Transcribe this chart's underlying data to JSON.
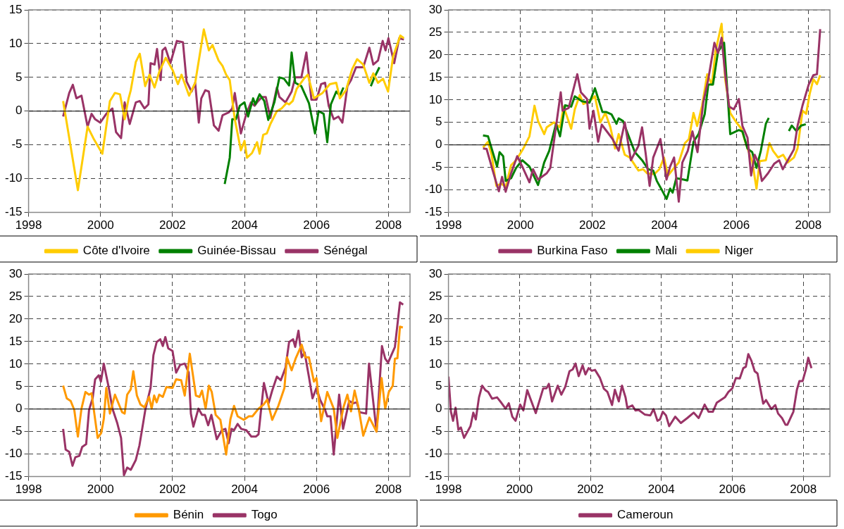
{
  "chart_data": [
    {
      "type": "line",
      "xlim": [
        1998,
        2008.6
      ],
      "xticks": [
        1998,
        2000,
        2002,
        2004,
        2006,
        2008
      ],
      "ylim": [
        -15,
        15
      ],
      "yticks": [
        -15,
        -10,
        -5,
        0,
        5,
        10,
        15
      ],
      "grid": true,
      "legend": "bottom",
      "series": [
        {
          "name": "Côte d'Ivoire",
          "color": "#ffcc00",
          "x": [
            1998.96,
            1999.37,
            1999.64,
            1999.8,
            2000.05,
            2000.26,
            2000.4,
            2000.54,
            2000.67,
            2000.78,
            2000.84,
            2000.98,
            2001.09,
            2001.24,
            2001.36,
            2001.5,
            2001.63,
            2001.81,
            2002.01,
            2002.15,
            2002.25,
            2002.46,
            2002.63,
            2002.77,
            2002.87,
            2003.01,
            2003.11,
            2003.28,
            2003.39,
            2003.49,
            2003.59,
            2003.73,
            2003.9,
            2004.0,
            2004.07,
            2004.21,
            2004.35,
            2004.42,
            2004.52,
            2004.62,
            2004.72,
            2004.9,
            2005.03,
            2005.17,
            2005.24,
            2005.34,
            2005.45,
            2005.65,
            2005.76,
            2005.93,
            2006.17,
            2006.37,
            2006.55,
            2006.65,
            2006.82,
            2006.99,
            2007.13,
            2007.3,
            2007.47,
            2007.58,
            2007.71,
            2007.85,
            2007.99,
            2008.13,
            2008.33,
            2008.43
          ],
          "values": [
            1.5,
            -11.7,
            -2.3,
            -4,
            -6.3,
            1.5,
            2.7,
            2.5,
            -1.2,
            1.9,
            3.1,
            7.3,
            8.5,
            3.7,
            5.4,
            3.5,
            5.8,
            7.9,
            6,
            4,
            5.4,
            2.3,
            4.2,
            8.8,
            12.1,
            9,
            9.8,
            7.5,
            6.7,
            5.4,
            4.6,
            -1.2,
            -5.8,
            -4.4,
            -6.9,
            -6.2,
            -4.6,
            -6.3,
            -3.5,
            -3.3,
            -1.9,
            0,
            0.4,
            1.2,
            1,
            1.5,
            3.3,
            4.8,
            5.4,
            1.9,
            2.7,
            4,
            4.2,
            1.9,
            3.1,
            6.2,
            7.7,
            6.9,
            4.2,
            5.6,
            4.2,
            4.8,
            2.9,
            8.1,
            11.2,
            10.8
          ]
        },
        {
          "name": "Guinée-Bissau",
          "color": "#008000",
          "x": [
            2003.45,
            2003.59,
            2003.66,
            2003.76,
            2003.87,
            2004.0,
            2004.1,
            2004.24,
            2004.3,
            2004.42,
            2004.55,
            2004.66,
            2004.83,
            2004.97,
            2005.1,
            2005.24,
            2005.31,
            2005.41,
            2005.58,
            2005.79,
            2005.96,
            2006.06,
            2006.2,
            2006.3,
            2006.4,
            2006.55,
            2006.65,
            2006.75,
            2007.1,
            2007.51,
            2007.61,
            2007.75
          ],
          "values": [
            -10.8,
            -6.9,
            -1.2,
            -1.2,
            0.8,
            1.3,
            -0.8,
            1.9,
            1,
            2.5,
            1.5,
            -1.3,
            1.3,
            5,
            4.8,
            3.8,
            8.7,
            4.2,
            3.7,
            1.2,
            -3.3,
            0,
            -0.4,
            -4.6,
            1,
            2.9,
            2.3,
            3.5,
            null,
            3.7,
            5,
            6.5
          ]
        },
        {
          "name": "Sénégal",
          "color": "#993366",
          "x": [
            1998.96,
            1999.13,
            1999.23,
            1999.33,
            1999.47,
            1999.64,
            1999.75,
            1999.85,
            1999.99,
            2000.16,
            2000.33,
            2000.43,
            2000.57,
            2000.67,
            2000.81,
            2000.98,
            2001.09,
            2001.22,
            2001.33,
            2001.39,
            2001.5,
            2001.57,
            2001.67,
            2001.72,
            2001.8,
            2001.94,
            2002.12,
            2002.29,
            2002.39,
            2002.53,
            2002.63,
            2002.73,
            2002.8,
            2002.91,
            2003.01,
            2003.15,
            2003.28,
            2003.39,
            2003.56,
            2003.66,
            2003.73,
            2003.9,
            2004.04,
            2004.18,
            2004.28,
            2004.38,
            2004.49,
            2004.59,
            2004.72,
            2004.9,
            2004.97,
            2005.14,
            2005.31,
            2005.41,
            2005.58,
            2005.72,
            2005.86,
            2006.0,
            2006.13,
            2006.24,
            2006.34,
            2006.48,
            2006.61,
            2006.72,
            2006.86,
            2006.96,
            2007.1,
            2007.3,
            2007.47,
            2007.58,
            2007.71,
            2007.84,
            2007.92,
            2008.0,
            2008.16,
            2008.3,
            2008.43
          ],
          "values": [
            -0.8,
            2.7,
            3.9,
            1.9,
            2.3,
            -2.3,
            -0.4,
            -1.2,
            -1.7,
            -0.4,
            0.4,
            -3.1,
            -4,
            1.3,
            -1.9,
            1.3,
            1.5,
            0.4,
            1,
            7.1,
            6.9,
            9.2,
            4.6,
            9,
            9.4,
            7.1,
            10.4,
            10.2,
            4.4,
            2.9,
            4.2,
            -1.7,
            1.9,
            3.1,
            2.9,
            -2.1,
            -2.9,
            -0.6,
            -0.2,
            0.4,
            2.7,
            -3.3,
            -0.6,
            1.3,
            0.8,
            1.5,
            2.1,
            2.1,
            -1,
            3.5,
            2.1,
            1.3,
            2.9,
            5,
            5,
            8.7,
            1.7,
            1.7,
            4,
            4.2,
            0.8,
            -1.2,
            -0.8,
            -1.7,
            3.7,
            4.6,
            6.5,
            6.5,
            9.4,
            6.9,
            7.5,
            10.4,
            9,
            10.8,
            7.1,
            10.8,
            10.6
          ]
        }
      ]
    },
    {
      "type": "line",
      "xlim": [
        1998,
        2008.6
      ],
      "xticks": [
        1998,
        2000,
        2002,
        2004,
        2006,
        2008
      ],
      "ylim": [
        -15,
        30
      ],
      "yticks": [
        -15,
        -10,
        -5,
        0,
        5,
        10,
        15,
        20,
        25,
        30
      ],
      "grid": true,
      "legend": "bottom",
      "series": [
        {
          "name": "Burkina Faso",
          "color": "#993366",
          "x": [
            1998.96,
            1999.06,
            1999.23,
            1999.4,
            1999.49,
            1999.59,
            1999.74,
            1999.91,
            2000.05,
            2000.25,
            2000.35,
            2000.49,
            2000.73,
            2000.83,
            2000.97,
            2001.12,
            2001.17,
            2001.34,
            2001.58,
            2001.68,
            2001.85,
            2001.92,
            2002.03,
            2002.16,
            2002.26,
            2002.43,
            2002.56,
            2002.73,
            2002.9,
            2003.07,
            2003.28,
            2003.38,
            2003.48,
            2003.59,
            2003.69,
            2003.89,
            2004.06,
            2004.16,
            2004.27,
            2004.4,
            2004.5,
            2004.65,
            2004.78,
            2004.92,
            2005.08,
            2005.22,
            2005.39,
            2005.49,
            2005.59,
            2005.69,
            2005.8,
            2005.93,
            2006.07,
            2006.17,
            2006.31,
            2006.41,
            2006.51,
            2006.61,
            2006.71,
            2006.88,
            2007.05,
            2007.19,
            2007.29,
            2007.43,
            2007.6,
            2007.7,
            2007.84,
            2008.01,
            2008.14,
            2008.24,
            2008.33
          ],
          "values": [
            -0.8,
            -0.9,
            -5.7,
            -10.3,
            -7.1,
            -10.4,
            -6.3,
            -2.5,
            -4.8,
            -8.3,
            -5.4,
            -7.7,
            -6.3,
            -5.1,
            3,
            11.7,
            7.6,
            8.2,
            15.7,
            11.7,
            10.2,
            3.6,
            7.6,
            0.7,
            4.5,
            2.7,
            1.3,
            -1.3,
            5,
            -3.4,
            -0.2,
            3.9,
            -1.9,
            -9.1,
            -2.8,
            1.3,
            -7.7,
            -4.8,
            -2.8,
            -12.6,
            -3.9,
            -1.3,
            3,
            -1.6,
            9.4,
            14.6,
            22.7,
            20.4,
            23.8,
            15.7,
            8.5,
            7.9,
            10.2,
            4.2,
            1.6,
            -6.8,
            -2.2,
            -3.9,
            -8,
            -6.3,
            -4.2,
            -3.4,
            -5.4,
            -3.4,
            -1,
            4.2,
            8.8,
            13.4,
            15.5,
            15.7,
            25.7
          ]
        },
        {
          "name": "Mali",
          "color": "#008000",
          "x": [
            1998.96,
            1999.1,
            1999.23,
            1999.35,
            1999.42,
            1999.52,
            1999.59,
            1999.74,
            1999.88,
            2000.05,
            2000.25,
            2000.49,
            2000.66,
            2000.8,
            2000.99,
            2001.1,
            2001.24,
            2001.41,
            2001.51,
            2001.71,
            2001.92,
            2002.07,
            2002.28,
            2002.39,
            2002.53,
            2002.67,
            2002.73,
            2002.85,
            2003.01,
            2003.18,
            2003.38,
            2003.55,
            2003.69,
            2003.79,
            2003.93,
            2004.06,
            2004.16,
            2004.23,
            2004.33,
            2004.54,
            2004.64,
            2004.81,
            2004.95,
            2005.12,
            2005.22,
            2005.35,
            2005.49,
            2005.66,
            2005.83,
            2006.07,
            2006.17,
            2006.31,
            2006.44,
            2006.56,
            2006.68,
            2006.82,
            2006.9,
            2007.2,
            2007.46,
            2007.54,
            2007.67,
            2007.8,
            2007.93
          ],
          "values": [
            2.1,
            1.9,
            -1.6,
            -4.8,
            -1.6,
            -2.5,
            -8,
            -7.4,
            -5.1,
            -3.4,
            -4.8,
            -8.9,
            -3.9,
            -1.3,
            4.7,
            1.9,
            8.8,
            8.5,
            10.8,
            9.7,
            9.4,
            12.6,
            7.3,
            7.3,
            6.8,
            4.7,
            5.9,
            5.3,
            1.9,
            -1.6,
            -3.4,
            -5.4,
            -5.7,
            -8,
            -10,
            -12,
            -9.7,
            -10.6,
            -7.4,
            -7.7,
            -7.9,
            0.7,
            2.4,
            6.8,
            13.4,
            13.4,
            20.7,
            22.7,
            2.4,
            3.3,
            3,
            -0.8,
            -1.6,
            -5.1,
            -1.3,
            4.7,
            6,
            null,
            3.1,
            4.3,
            3.1,
            4.3,
            4.6
          ]
        },
        {
          "name": "Niger",
          "color": "#ffcc00",
          "x": [
            1998.96,
            1999.1,
            1999.2,
            1999.33,
            1999.47,
            1999.59,
            1999.74,
            1999.88,
            2000.08,
            2000.25,
            2000.39,
            2000.49,
            2000.66,
            2000.73,
            2000.93,
            2001.1,
            2001.2,
            2001.41,
            2001.51,
            2001.65,
            2001.75,
            2001.92,
            2002.07,
            2002.22,
            2002.36,
            2002.5,
            2002.63,
            2002.73,
            2002.9,
            2003.04,
            2003.28,
            2003.41,
            2003.52,
            2003.72,
            2003.86,
            2003.99,
            2004.1,
            2004.27,
            2004.4,
            2004.57,
            2004.68,
            2004.81,
            2004.91,
            2005.05,
            2005.19,
            2005.32,
            2005.42,
            2005.59,
            2005.69,
            2005.83,
            2006.0,
            2006.14,
            2006.27,
            2006.44,
            2006.56,
            2006.65,
            2006.82,
            2006.92,
            2007.02,
            2007.16,
            2007.3,
            2007.43,
            2007.6,
            2007.7,
            2007.84,
            2007.94,
            2008.04,
            2008.14,
            2008.24,
            2008.33
          ],
          "values": [
            -0.6,
            0.7,
            -2.2,
            -9.1,
            -8.6,
            -9.3,
            -4.5,
            -3.4,
            -0.8,
            1.9,
            8.7,
            5.3,
            2.4,
            3.9,
            5,
            3.9,
            8.5,
            3.6,
            7.9,
            11.1,
            9.1,
            9.7,
            10.8,
            5,
            7.1,
            3.9,
            -0.8,
            2.4,
            -2.2,
            -2.8,
            -5.7,
            -5.4,
            -6.3,
            -6.5,
            -5.4,
            -2.8,
            -6.8,
            -5.1,
            -3.9,
            0.4,
            1.3,
            7.1,
            4.2,
            8.8,
            15.7,
            13.4,
            20.7,
            26.9,
            14.6,
            7.1,
            5,
            3.6,
            0.1,
            -3.6,
            -9.7,
            -3.6,
            -3.4,
            0.4,
            -1.3,
            -2.8,
            -2.2,
            -3.9,
            -2.8,
            -0.8,
            7.6,
            6.9,
            11.4,
            14.6,
            13.5,
            15.5
          ]
        }
      ]
    },
    {
      "type": "line",
      "xlim": [
        1998,
        2008.6
      ],
      "xticks": [
        1998,
        2000,
        2002,
        2004,
        2006,
        2008
      ],
      "ylim": [
        -15,
        30
      ],
      "yticks": [
        -15,
        -10,
        -5,
        0,
        5,
        10,
        15,
        20,
        25,
        30
      ],
      "grid": true,
      "legend": "bottom",
      "series": [
        {
          "name": "Bénin",
          "color": "#ff9900",
          "x": [
            1998.96,
            1999.06,
            1999.17,
            1999.27,
            1999.37,
            1999.47,
            1999.58,
            1999.68,
            1999.75,
            1999.92,
            2000.02,
            2000.09,
            2000.16,
            2000.26,
            2000.4,
            2000.6,
            2000.67,
            2000.74,
            2000.84,
            2000.91,
            2001.01,
            2001.11,
            2001.22,
            2001.35,
            2001.42,
            2001.49,
            2001.56,
            2001.63,
            2001.73,
            2001.83,
            2002.0,
            2002.1,
            2002.24,
            2002.34,
            2002.48,
            2002.65,
            2002.75,
            2002.82,
            2002.92,
            2003.01,
            2003.09,
            2003.2,
            2003.33,
            2003.49,
            2003.61,
            2003.71,
            2003.81,
            2003.98,
            2004.12,
            2004.22,
            2004.39,
            2004.53,
            2004.63,
            2004.77,
            2004.94,
            2005.11,
            2005.18,
            2005.31,
            2005.42,
            2005.59,
            2005.69,
            2005.79,
            2005.93,
            2006.0,
            2006.13,
            2006.3,
            2006.48,
            2006.58,
            2006.75,
            2006.86,
            2006.96,
            2007.06,
            2007.16,
            2007.3,
            2007.47,
            2007.67,
            2007.81,
            2007.91,
            2008.01,
            2008.12,
            2008.18,
            2008.25,
            2008.32,
            2008.4
          ],
          "values": [
            5.2,
            2.4,
            1.8,
            -0.2,
            -6.1,
            0.1,
            3.8,
            3.2,
            3.5,
            -6.4,
            -5.3,
            -2.2,
            4.7,
            -1,
            3.2,
            -0.7,
            -1,
            3.2,
            4.4,
            8.4,
            3,
            1,
            0.4,
            2.7,
            0.1,
            3,
            1.5,
            3.2,
            2.7,
            4.9,
            4.7,
            6.6,
            6.4,
            3,
            12.3,
            3,
            2.7,
            4.1,
            0.1,
            5.2,
            3.8,
            -1.3,
            -2.4,
            -10.1,
            -2.2,
            0.7,
            -1.6,
            -2.4,
            -1.6,
            -1.6,
            0.1,
            1,
            2.1,
            -2.4,
            0.7,
            4.7,
            11.5,
            8.6,
            11.2,
            14.3,
            11.5,
            11.5,
            6.1,
            6.9,
            -2.7,
            3.8,
            0.1,
            -6.4,
            0.4,
            3.2,
            -0.5,
            4.1,
            0.7,
            -5.9,
            -1.9,
            -5,
            6.9,
            0.1,
            3.8,
            5.2,
            11.2,
            11.3,
            18.3,
            18.1
          ]
        },
        {
          "name": "Togo",
          "color": "#993366",
          "x": [
            1998.96,
            1999.03,
            1999.13,
            1999.22,
            1999.3,
            1999.41,
            1999.49,
            1999.6,
            1999.68,
            1999.78,
            1999.85,
            1999.95,
            2000.01,
            2000.09,
            2000.23,
            2000.33,
            2000.46,
            2000.57,
            2000.65,
            2000.74,
            2000.84,
            2000.98,
            2001.08,
            2001.18,
            2001.25,
            2001.39,
            2001.47,
            2001.56,
            2001.66,
            2001.73,
            2001.8,
            2001.88,
            2002.0,
            2002.1,
            2002.21,
            2002.34,
            2002.45,
            2002.51,
            2002.58,
            2002.72,
            2002.82,
            2002.9,
            2002.99,
            2003.08,
            2003.23,
            2003.37,
            2003.47,
            2003.56,
            2003.64,
            2003.71,
            2003.81,
            2003.91,
            2004.05,
            2004.19,
            2004.32,
            2004.39,
            2004.46,
            2004.54,
            2004.67,
            2004.77,
            2004.9,
            2005.01,
            2005.14,
            2005.24,
            2005.35,
            2005.41,
            2005.5,
            2005.59,
            2005.67,
            2005.79,
            2005.89,
            2006.0,
            2006.1,
            2006.24,
            2006.3,
            2006.39,
            2006.48,
            2006.63,
            2006.74,
            2006.91,
            2007.02,
            2007.12,
            2007.2,
            2007.38,
            2007.46,
            2007.67,
            2007.82,
            2007.91,
            2007.99,
            2008.18,
            2008.32,
            2008.41
          ],
          "values": [
            -4.4,
            -9,
            -9.5,
            -12.6,
            -10.7,
            -10.4,
            -8.4,
            -7.8,
            -0.2,
            2.4,
            6.6,
            7.5,
            6.1,
            10.1,
            4.7,
            0.1,
            -3,
            -6.4,
            -14.7,
            -13,
            -13.5,
            -11.3,
            -8.1,
            -3.3,
            0.1,
            4.7,
            12,
            14.9,
            15.5,
            14,
            16,
            13.5,
            12.9,
            8.1,
            9.8,
            10.1,
            8.1,
            -1,
            -3.9,
            0.1,
            -1.3,
            -1.3,
            -3.6,
            -1.3,
            -6.7,
            -4.7,
            -4.4,
            -7.6,
            -4.4,
            -4.7,
            -3.3,
            -4.4,
            -4.7,
            -6.1,
            -6.1,
            -5.6,
            -0.2,
            5.8,
            1.3,
            4.1,
            7.2,
            6.4,
            9.2,
            14.9,
            15.5,
            13.8,
            17.4,
            11.5,
            12.6,
            7.2,
            2.4,
            4.7,
            2.1,
            -0.2,
            -1.6,
            -1.6,
            -10.1,
            3.2,
            -4.4,
            1.8,
            1.3,
            1.5,
            -0.7,
            -1,
            10.1,
            -5,
            14,
            11.2,
            10.3,
            13.8,
            23.7,
            23.2
          ]
        }
      ]
    },
    {
      "type": "line",
      "xlim": [
        1998,
        2008.75
      ],
      "xticks": [
        1998,
        2000,
        2002,
        2004,
        2006,
        2008
      ],
      "ylim": [
        -15,
        30
      ],
      "yticks": [
        -15,
        -10,
        -5,
        0,
        5,
        10,
        15,
        20,
        25,
        30
      ],
      "grid": true,
      "legend": "bottom",
      "series": [
        {
          "name": "Cameroun",
          "color": "#993366",
          "x": [
            1998,
            1998.07,
            1998.13,
            1998.2,
            1998.28,
            1998.35,
            1998.44,
            1998.62,
            1998.7,
            1998.77,
            1998.86,
            1998.95,
            1999.04,
            1999.12,
            1999.23,
            1999.37,
            1999.49,
            1999.61,
            1999.7,
            1999.8,
            1999.89,
            2000.02,
            2000.11,
            2000.22,
            2000.46,
            2000.67,
            2000.76,
            2000.83,
            2000.92,
            2001.08,
            2001.18,
            2001.29,
            2001.41,
            2001.5,
            2001.58,
            2001.67,
            2001.78,
            2001.86,
            2001.95,
            2002.04,
            2002.13,
            2002.27,
            2002.38,
            2002.48,
            2002.61,
            2002.69,
            2002.8,
            2002.89,
            2002.99,
            2003.04,
            2003.18,
            2003.27,
            2003.36,
            2003.53,
            2003.69,
            2003.78,
            2003.89,
            2003.96,
            2004.04,
            2004.13,
            2004.22,
            2004.39,
            2004.55,
            2004.73,
            2004.91,
            2005.05,
            2005.22,
            2005.33,
            2005.45,
            2005.56,
            2005.79,
            2005.89,
            2006.0,
            2006.1,
            2006.21,
            2006.31,
            2006.38,
            2006.45,
            2006.54,
            2006.63,
            2006.71,
            2006.87,
            2006.95,
            2007.1,
            2007.21,
            2007.29,
            2007.4,
            2007.5,
            2007.55,
            2007.72,
            2007.82,
            2007.89,
            2007.98,
            2008.07,
            2008.14,
            2008.23
          ],
          "values": [
            7.2,
            -0.6,
            -2.6,
            0.3,
            -4.6,
            -4.1,
            -6.4,
            -3.8,
            -0.8,
            -2.3,
            2.6,
            5.2,
            4.2,
            3.8,
            2.3,
            2.6,
            1.4,
            0.1,
            1.3,
            -1.7,
            -2.6,
            1,
            -0.3,
            4.2,
            -0.9,
            4.6,
            4.6,
            5.6,
            1.7,
            5.2,
            3.2,
            4.9,
            8.4,
            8.8,
            10.1,
            7.3,
            9.7,
            7.7,
            9.1,
            8.5,
            8.7,
            6.9,
            4.5,
            3.8,
            0.9,
            4.3,
            1.7,
            5.2,
            2.6,
            0.3,
            0.8,
            -0.3,
            -0.2,
            -1.2,
            -1.4,
            0,
            -2.6,
            -2.3,
            -0.6,
            -1.4,
            -3.8,
            -1.7,
            -3.1,
            -2,
            -0.8,
            -2,
            1,
            -0.6,
            -0.6,
            1.4,
            2.6,
            3.8,
            4.6,
            6.9,
            6.8,
            9.1,
            9.4,
            12.2,
            10.7,
            8.4,
            7.9,
            1.2,
            2,
            0,
            0.9,
            -1,
            -2,
            -3.5,
            -3.5,
            -0.6,
            4.3,
            6.2,
            6.2,
            8.7,
            11.4,
            9.1
          ]
        }
      ]
    }
  ]
}
